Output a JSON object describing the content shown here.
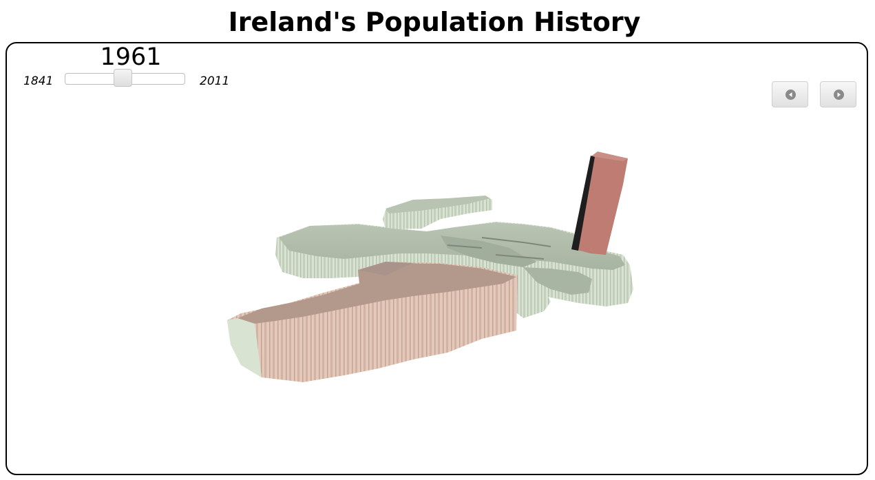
{
  "page": {
    "title": "Ireland's Population History"
  },
  "slider": {
    "current_year": "1961",
    "min_label": "1841",
    "max_label": "2011",
    "min_year": 1841,
    "max_year": 2011,
    "value": 1961
  },
  "controls": {
    "prev_icon": "previous-icon",
    "next_icon": "next-icon"
  },
  "map": {
    "colors": {
      "low_population": "#c9d6c2",
      "mid_population": "#d9bfae",
      "high_population": "#c07a72",
      "frame_border": "#000000"
    }
  }
}
